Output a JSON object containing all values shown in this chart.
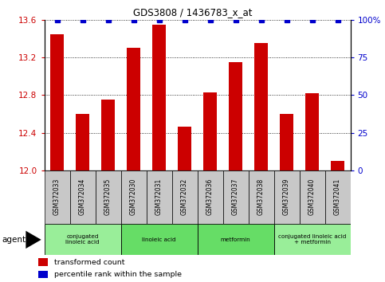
{
  "title": "GDS3808 / 1436783_x_at",
  "categories": [
    "GSM372033",
    "GSM372034",
    "GSM372035",
    "GSM372030",
    "GSM372031",
    "GSM372032",
    "GSM372036",
    "GSM372037",
    "GSM372038",
    "GSM372039",
    "GSM372040",
    "GSM372041"
  ],
  "bar_values": [
    13.45,
    12.6,
    12.75,
    13.3,
    13.55,
    12.47,
    12.83,
    13.15,
    13.35,
    12.6,
    12.82,
    12.1
  ],
  "percentile_values": [
    100,
    100,
    100,
    100,
    100,
    100,
    100,
    100,
    100,
    100,
    100,
    100
  ],
  "bar_color": "#cc0000",
  "percentile_color": "#0000cc",
  "ymin": 12.0,
  "ymax": 13.6,
  "yticks": [
    12.0,
    12.4,
    12.8,
    13.2,
    13.6
  ],
  "y2min": 0,
  "y2max": 100,
  "y2ticks": [
    0,
    25,
    50,
    75,
    100
  ],
  "y2ticklabels": [
    "0",
    "25",
    "50",
    "75",
    "100%"
  ],
  "groups": [
    {
      "label": "conjugated\nlinoleic acid",
      "start": 0,
      "end": 3,
      "color": "#99ee99"
    },
    {
      "label": "linoleic acid",
      "start": 3,
      "end": 6,
      "color": "#66dd66"
    },
    {
      "label": "metformin",
      "start": 6,
      "end": 9,
      "color": "#66dd66"
    },
    {
      "label": "conjugated linoleic acid\n+ metformin",
      "start": 9,
      "end": 12,
      "color": "#99ee99"
    }
  ],
  "tick_label_bg": "#c8c8c8",
  "fig_width": 4.83,
  "fig_height": 3.54,
  "dpi": 100
}
